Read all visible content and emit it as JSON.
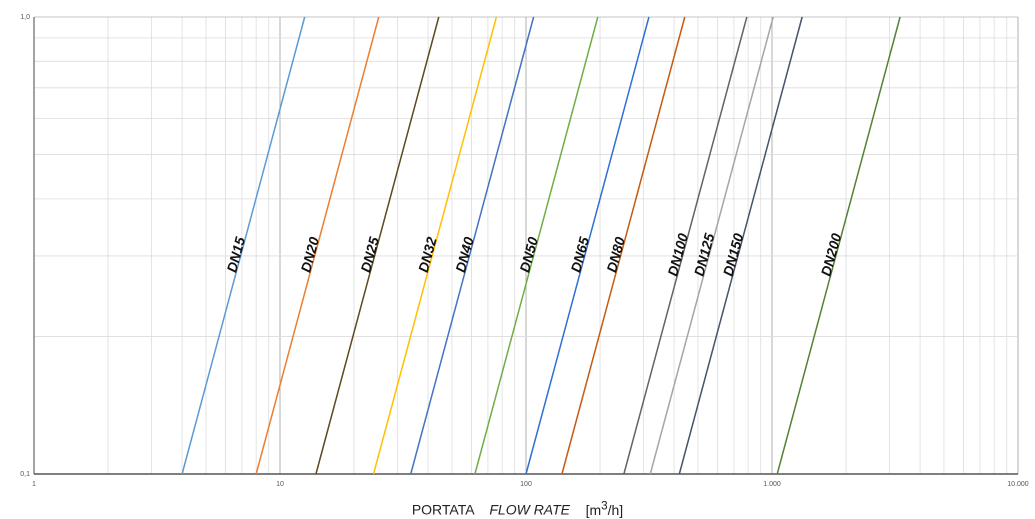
{
  "chart_data": {
    "type": "line",
    "title": "",
    "xlabel": {
      "it": "PORTATA",
      "en": "FLOW RATE",
      "unit_pre": "[m",
      "unit_sup": "3",
      "unit_post": "/h]"
    },
    "ylabel": "",
    "x_scale": "log",
    "y_scale": "log",
    "xlim": [
      1,
      10000
    ],
    "ylim": [
      0.1,
      1.0
    ],
    "grid": true,
    "x_tick_labels": [
      "1",
      "10",
      "100",
      "1.000",
      "10.000"
    ],
    "y_tick_labels": [
      "0,1",
      "1,0"
    ],
    "series": [
      {
        "name": "DN15",
        "color": "#5b9bd5",
        "x": [
          4.0,
          12.6
        ]
      },
      {
        "name": "DN20",
        "color": "#ed7d31",
        "x": [
          8.0,
          25.2
        ]
      },
      {
        "name": "DN25",
        "color": "#5c4a1e",
        "x": [
          14.0,
          44.2
        ]
      },
      {
        "name": "DN32",
        "color": "#ffc000",
        "x": [
          24.0,
          75.8
        ]
      },
      {
        "name": "DN40",
        "color": "#4472c4",
        "x": [
          34.0,
          107.4
        ]
      },
      {
        "name": "DN50",
        "color": "#70ad47",
        "x": [
          62.0,
          195.8
        ]
      },
      {
        "name": "DN65",
        "color": "#2f6fd6",
        "x": [
          100.0,
          316.0
        ]
      },
      {
        "name": "DN80",
        "color": "#c55a11",
        "x": [
          140.0,
          442.0
        ]
      },
      {
        "name": "DN100",
        "color": "#636363",
        "x": [
          250.0,
          790.0
        ]
      },
      {
        "name": "DN125",
        "color": "#a5a5a5",
        "x": [
          320.0,
          1011.0
        ]
      },
      {
        "name": "DN150",
        "color": "#44546a",
        "x": [
          420.0,
          1326.0
        ]
      },
      {
        "name": "DN200",
        "color": "#548235",
        "x": [
          1050.0,
          3316.0
        ]
      }
    ],
    "y_values": [
      0.1,
      1.0
    ]
  }
}
